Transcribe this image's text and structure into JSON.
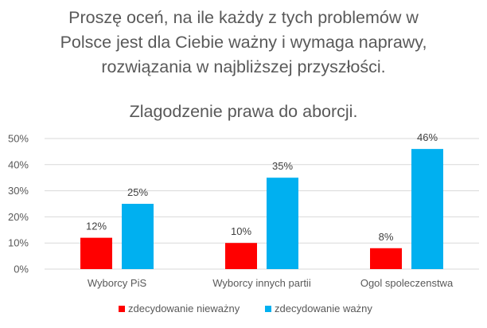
{
  "chart_data": {
    "type": "bar",
    "title": [
      "Proszę oceń, na ile każdy z tych problemów w",
      "Polsce jest dla Ciebie ważny i wymaga naprawy,",
      "rozwiązania w najbliższej przyszłości."
    ],
    "subtitle": "Zlagodzenie prawa do aborcji.",
    "categories": [
      "Wyborcy PiS",
      "Wyborcy innych partii",
      "Ogol spoleczenstwa"
    ],
    "series": [
      {
        "name": "zdecydowanie nieważny",
        "color": "#FF0000",
        "values": [
          12,
          10,
          8
        ],
        "labels": [
          "12%",
          "10%",
          "8%"
        ]
      },
      {
        "name": "zdecydowanie ważny",
        "color": "#00B0F0",
        "values": [
          25,
          35,
          46
        ],
        "labels": [
          "25%",
          "35%",
          "46%"
        ]
      }
    ],
    "ylim": [
      0,
      50
    ],
    "yticks": [
      0,
      10,
      20,
      30,
      40,
      50
    ],
    "ytick_labels": [
      "0%",
      "10%",
      "20%",
      "30%",
      "40%",
      "50%"
    ],
    "grid": true,
    "legend_position": "bottom"
  }
}
